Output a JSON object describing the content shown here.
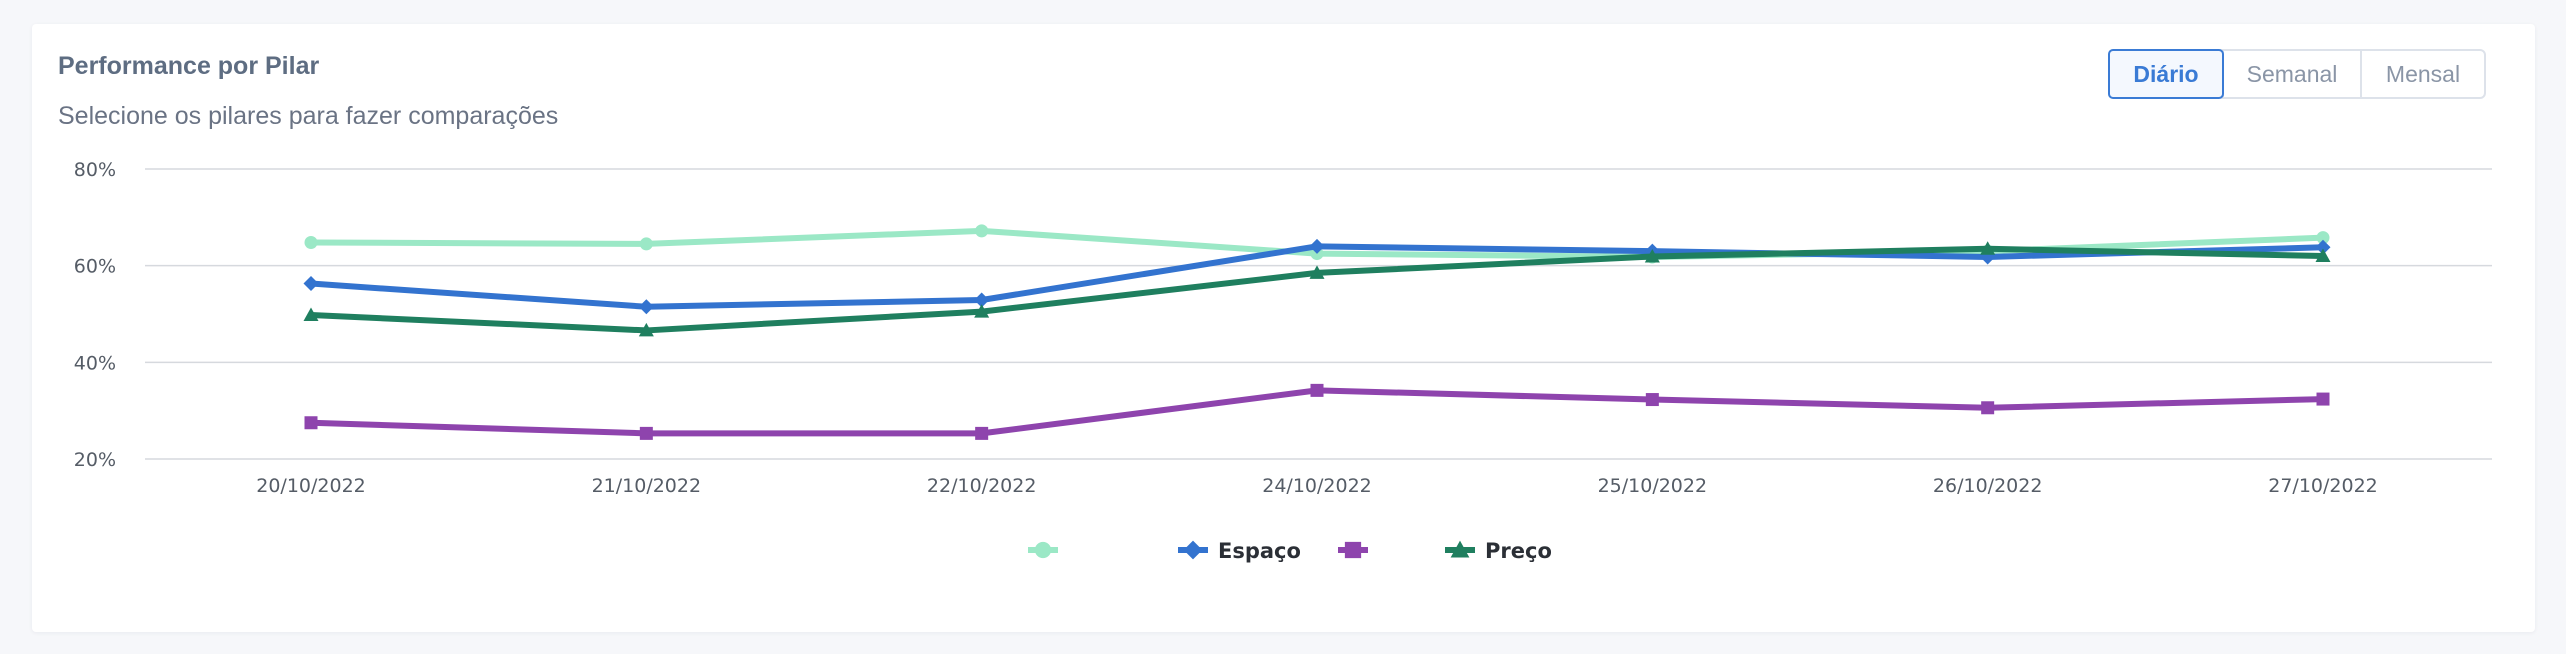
{
  "header": {
    "title": "Performance por Pilar",
    "subtitle": "Selecione os pilares para fazer comparações"
  },
  "period_buttons": [
    {
      "label": "Diário",
      "active": true
    },
    {
      "label": "Semanal",
      "active": false
    },
    {
      "label": "Mensal",
      "active": false
    }
  ],
  "colors": {
    "accent": "#3a7bd5",
    "grid": "#d6d9de"
  },
  "chart_data": {
    "type": "line",
    "categories": [
      "20/10/2022",
      "21/10/2022",
      "22/10/2022",
      "24/10/2022",
      "25/10/2022",
      "26/10/2022",
      "27/10/2022"
    ],
    "ylim": [
      20,
      80
    ],
    "yticks": [
      20,
      40,
      60,
      80
    ],
    "ytick_labels": [
      "20%",
      "40%",
      "60%",
      "80%"
    ],
    "grid": true,
    "legend_position": "bottom",
    "series": [
      {
        "name": "",
        "color": "#9be8c6",
        "marker": "circle",
        "values": [
          64.8,
          64.5,
          67.2,
          62.5,
          61.8,
          63.0,
          65.8
        ]
      },
      {
        "name": "Espaço",
        "color": "#3373cf",
        "marker": "diamond",
        "values": [
          56.3,
          51.5,
          52.9,
          64.0,
          63.0,
          61.8,
          63.8
        ]
      },
      {
        "name": "",
        "color": "#8e44ad",
        "marker": "square",
        "values": [
          27.5,
          25.3,
          25.3,
          34.2,
          32.3,
          30.6,
          32.4
        ]
      },
      {
        "name": "Preço",
        "color": "#1f7f5f",
        "marker": "triangle",
        "values": [
          49.8,
          46.6,
          50.5,
          58.5,
          61.9,
          63.5,
          62.0
        ]
      }
    ]
  }
}
